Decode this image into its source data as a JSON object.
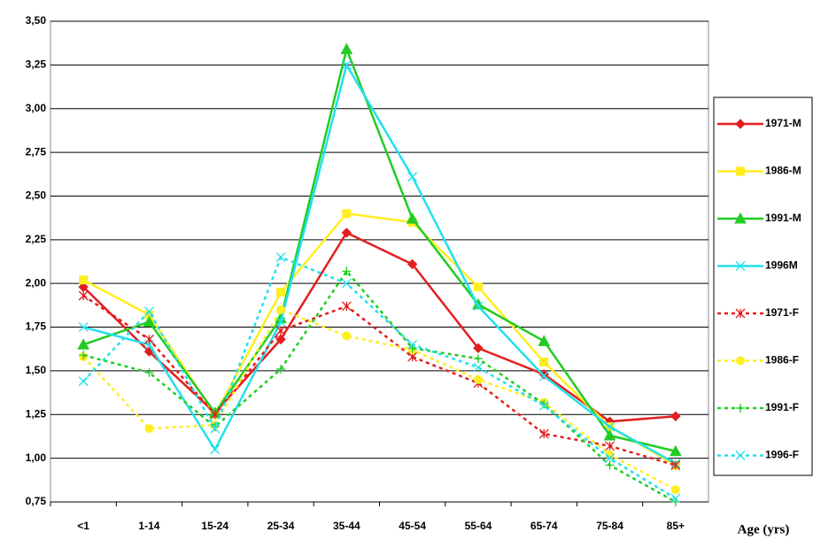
{
  "chart_data": {
    "type": "line",
    "x_label": "Age (yrs)",
    "categories": [
      "<1",
      "1-14",
      "15-24",
      "25-34",
      "35-44",
      "45-54",
      "55-64",
      "65-74",
      "75-84",
      "85+"
    ],
    "ylim": [
      0.75,
      3.5
    ],
    "yticks": [
      {
        "value": 0.75,
        "label": "0,75"
      },
      {
        "value": 1,
        "label": "1,00"
      },
      {
        "value": 1.25,
        "label": "1,25"
      },
      {
        "value": 1.5,
        "label": "1,50"
      },
      {
        "value": 1.75,
        "label": "1,75"
      },
      {
        "value": 2,
        "label": "2,00"
      },
      {
        "value": 2.25,
        "label": "2,25"
      },
      {
        "value": 2.5,
        "label": "2,50"
      },
      {
        "value": 2.75,
        "label": "2,75"
      },
      {
        "value": 3,
        "label": "3,00"
      },
      {
        "value": 3.25,
        "label": "3,25"
      },
      {
        "value": 3.5,
        "label": "3,50"
      }
    ],
    "grid": true,
    "legend": "right",
    "series": [
      {
        "name": "1971-M",
        "color": "#e31e1e",
        "marker": "diamond",
        "dashed": false,
        "values": [
          1.98,
          1.61,
          1.26,
          1.68,
          2.29,
          2.11,
          1.63,
          1.48,
          1.21,
          1.24
        ]
      },
      {
        "name": "1986-M",
        "color": "#ffee22",
        "marker": "square",
        "dashed": false,
        "values": [
          2.02,
          1.82,
          1.25,
          1.95,
          2.4,
          2.35,
          1.98,
          1.55,
          1.18,
          0.96
        ]
      },
      {
        "name": "1991-M",
        "color": "#22cc22",
        "marker": "triangle",
        "dashed": false,
        "values": [
          1.65,
          1.78,
          1.26,
          1.8,
          3.34,
          2.37,
          1.88,
          1.67,
          1.13,
          1.04
        ]
      },
      {
        "name": "1996M",
        "color": "#22e0ee",
        "marker": "x",
        "dashed": false,
        "values": [
          1.75,
          1.65,
          1.05,
          1.78,
          3.25,
          2.61,
          1.87,
          1.47,
          1.18,
          0.97
        ]
      },
      {
        "name": "1971-F",
        "color": "#e31e1e",
        "marker": "asterisk",
        "dashed": true,
        "values": [
          1.93,
          1.68,
          1.25,
          1.73,
          1.87,
          1.58,
          1.43,
          1.14,
          1.07,
          0.96
        ]
      },
      {
        "name": "1986-F",
        "color": "#ffee22",
        "marker": "circle",
        "dashed": true,
        "values": [
          1.58,
          1.17,
          1.19,
          1.85,
          1.7,
          1.62,
          1.45,
          1.32,
          1.02,
          0.82
        ]
      },
      {
        "name": "1991-F",
        "color": "#22cc22",
        "marker": "plus",
        "dashed": true,
        "values": [
          1.59,
          1.49,
          1.18,
          1.51,
          2.07,
          1.63,
          1.57,
          1.31,
          0.96,
          0.75
        ]
      },
      {
        "name": "1996-F",
        "color": "#22e0ee",
        "marker": "x",
        "dashed": true,
        "values": [
          1.44,
          1.84,
          1.17,
          2.15,
          2.0,
          1.65,
          1.52,
          1.3,
          1.0,
          0.77
        ]
      }
    ]
  }
}
